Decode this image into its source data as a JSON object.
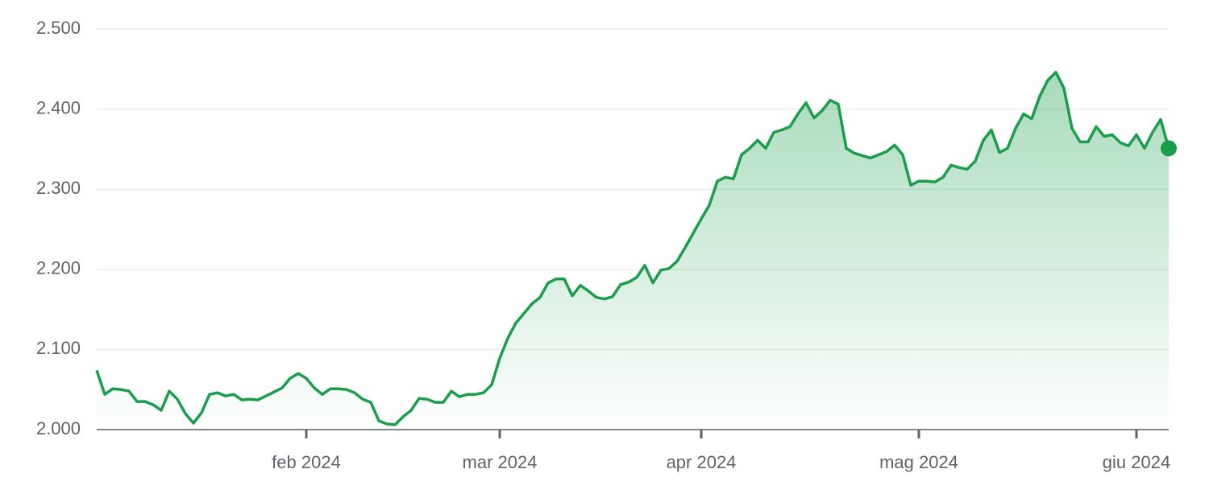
{
  "chart_data": {
    "type": "line",
    "color": "#1a9e4b",
    "grid": true,
    "categories": [
      null,
      null,
      null,
      null,
      null,
      null,
      null,
      null,
      null,
      null,
      null,
      null,
      null,
      null,
      null,
      null,
      null,
      null,
      null,
      null,
      null,
      null,
      null,
      null,
      null,
      null,
      "feb 2024",
      null,
      null,
      null,
      null,
      null,
      null,
      null,
      null,
      null,
      null,
      null,
      null,
      null,
      null,
      null,
      null,
      null,
      null,
      null,
      null,
      null,
      null,
      null,
      "mar 2024",
      null,
      null,
      null,
      null,
      null,
      null,
      null,
      null,
      null,
      null,
      null,
      null,
      null,
      null,
      null,
      null,
      null,
      null,
      null,
      null,
      null,
      null,
      null,
      null,
      "apr 2024",
      null,
      null,
      null,
      null,
      null,
      null,
      null,
      null,
      null,
      null,
      null,
      null,
      null,
      null,
      null,
      null,
      null,
      null,
      null,
      null,
      null,
      null,
      null,
      null,
      null,
      null,
      "mag 2024",
      null,
      null,
      null,
      null,
      null,
      null,
      null,
      null,
      null,
      null,
      null,
      null,
      null,
      null,
      null,
      null,
      null,
      null,
      null,
      null,
      null,
      null,
      null,
      null,
      null,
      null,
      "giu 2024",
      null,
      null,
      null,
      null
    ],
    "values": [
      2074,
      2044,
      2051,
      2050,
      2048,
      2035,
      2035,
      2031,
      2024,
      2048,
      2038,
      2020,
      2008,
      2021,
      2044,
      2046,
      2042,
      2044,
      2037,
      2038,
      2037,
      2042,
      2047,
      2052,
      2064,
      2070,
      2064,
      2052,
      2044,
      2051,
      2051,
      2050,
      2046,
      2038,
      2034,
      2011,
      2007,
      2006,
      2016,
      2024,
      2039,
      2038,
      2034,
      2034,
      2048,
      2041,
      2044,
      2044,
      2046,
      2056,
      2089,
      2114,
      2133,
      2145,
      2157,
      2165,
      2183,
      2188,
      2188,
      2167,
      2180,
      2173,
      2165,
      2163,
      2166,
      2181,
      2184,
      2190,
      2205,
      2183,
      2199,
      2201,
      2210,
      2227,
      2245,
      2263,
      2280,
      2310,
      2315,
      2313,
      2343,
      2351,
      2361,
      2351,
      2371,
      2374,
      2378,
      2394,
      2408,
      2389,
      2398,
      2411,
      2406,
      2351,
      2345,
      2342,
      2339,
      2343,
      2347,
      2355,
      2343,
      2305,
      2310,
      2310,
      2309,
      2315,
      2330,
      2327,
      2325,
      2335,
      2361,
      2374,
      2346,
      2351,
      2376,
      2394,
      2388,
      2416,
      2436,
      2446,
      2426,
      2376,
      2359,
      2359,
      2378,
      2366,
      2368,
      2358,
      2354,
      2368,
      2351,
      2371,
      2387,
      2351
    ],
    "ylim": [
      2000,
      2500
    ],
    "yticks": [
      {
        "value": 2000,
        "label": "2.000"
      },
      {
        "value": 2100,
        "label": "2.100"
      },
      {
        "value": 2200,
        "label": "2.200"
      },
      {
        "value": 2300,
        "label": "2.300"
      },
      {
        "value": 2400,
        "label": "2.400"
      },
      {
        "value": 2500,
        "label": "2.500"
      }
    ]
  }
}
